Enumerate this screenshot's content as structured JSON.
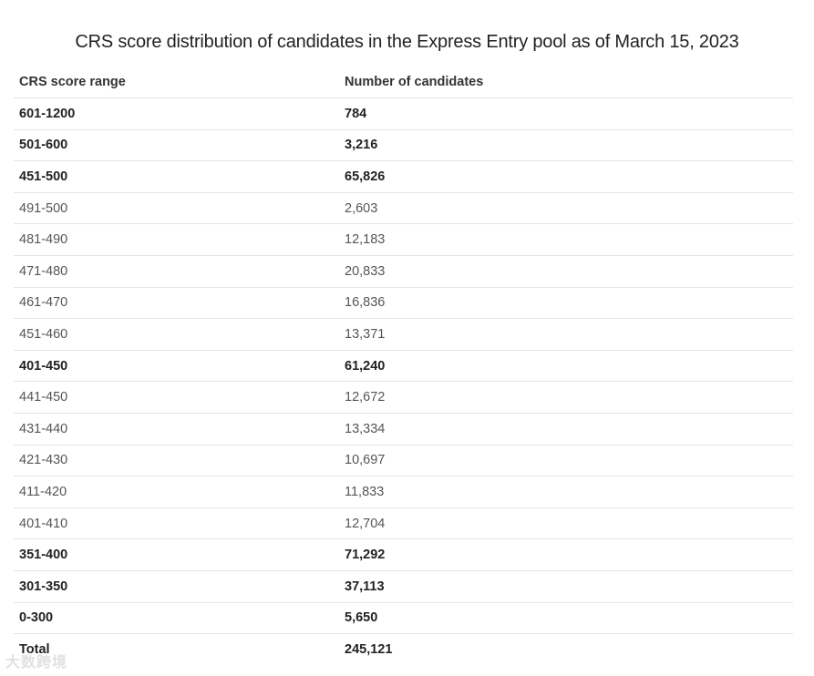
{
  "title": "CRS score distribution of candidates in the Express Entry pool as of March 15, 2023",
  "table": {
    "headers": {
      "range": "CRS score range",
      "count": "Number of candidates"
    },
    "rows": [
      {
        "range": "601-1200",
        "count": "784",
        "style": "bold"
      },
      {
        "range": "501-600",
        "count": "3,216",
        "style": "bold"
      },
      {
        "range": "451-500",
        "count": "65,826",
        "style": "bold"
      },
      {
        "range": "491-500",
        "count": "2,603",
        "style": "sub"
      },
      {
        "range": "481-490",
        "count": "12,183",
        "style": "sub"
      },
      {
        "range": "471-480",
        "count": "20,833",
        "style": "sub"
      },
      {
        "range": "461-470",
        "count": "16,836",
        "style": "sub"
      },
      {
        "range": "451-460",
        "count": "13,371",
        "style": "sub"
      },
      {
        "range": "401-450",
        "count": "61,240",
        "style": "bold"
      },
      {
        "range": "441-450",
        "count": "12,672",
        "style": "sub"
      },
      {
        "range": "431-440",
        "count": "13,334",
        "style": "sub"
      },
      {
        "range": "421-430",
        "count": "10,697",
        "style": "sub"
      },
      {
        "range": "411-420",
        "count": "11,833",
        "style": "sub"
      },
      {
        "range": "401-410",
        "count": "12,704",
        "style": "sub"
      },
      {
        "range": "351-400",
        "count": "71,292",
        "style": "bold"
      },
      {
        "range": "301-350",
        "count": "37,113",
        "style": "bold"
      },
      {
        "range": "0-300",
        "count": "5,650",
        "style": "bold"
      }
    ],
    "total": {
      "range": "Total",
      "count": "245,121"
    }
  },
  "watermark": "大数跨境"
}
